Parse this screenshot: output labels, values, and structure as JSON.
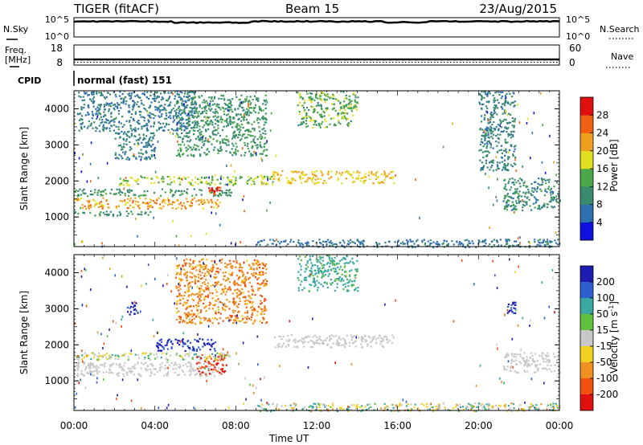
{
  "header": {
    "radar": "TIGER (fitACF)",
    "beam": "Beam 15",
    "date": "23/Aug/2015"
  },
  "noise_panel": {
    "left_label": "N.Sky",
    "right_label": "N.Search",
    "left_ticks": [
      "10^5",
      "10^0"
    ],
    "right_ticks": [
      "10^5",
      "10^0"
    ]
  },
  "freq_panel": {
    "left_label_line1": "Freq.",
    "left_label_line2": "[MHz]",
    "left_ticks": [
      "18",
      "8"
    ],
    "right_label": "Nave",
    "right_ticks": [
      "60",
      "0"
    ]
  },
  "cpid_panel": {
    "label": "CPID",
    "text": "normal (fast) 151"
  },
  "chart_data": [
    {
      "type": "heatmap",
      "name": "power",
      "ylabel": "Slant Range [km]",
      "xlabel": "Time UT",
      "xlim": [
        0,
        24
      ],
      "ylim": [
        180,
        4500
      ],
      "x_tick_labels": [
        "00:00",
        "04:00",
        "08:00",
        "12:00",
        "16:00",
        "20:00",
        "00:00"
      ],
      "y_ticks": [
        1000,
        2000,
        3000,
        4000
      ],
      "colorbar_label": "Power [dB]",
      "colorbar_ticks": [
        "4",
        "8",
        "12",
        "16",
        "20",
        "24",
        "28"
      ],
      "colorbar_colors": [
        "#1010e0",
        "#2f6fb0",
        "#3a8a70",
        "#4aa848",
        "#e0e020",
        "#f0a020",
        "#f06010",
        "#e01010"
      ],
      "regions": [
        {
          "t": [
            0.0,
            7.2
          ],
          "r": [
            1250,
            1550
          ],
          "level": [
            18,
            26
          ]
        },
        {
          "t": [
            0.0,
            3.8
          ],
          "r": [
            1050,
            1180
          ],
          "level": [
            8,
            14
          ]
        },
        {
          "t": [
            0.0,
            7.8
          ],
          "r": [
            1600,
            1800
          ],
          "level": [
            8,
            14
          ]
        },
        {
          "t": [
            6.6,
            7.2
          ],
          "r": [
            1650,
            1850
          ],
          "level": [
            26,
            30
          ]
        },
        {
          "t": [
            2.2,
            9.8
          ],
          "r": [
            1900,
            2150
          ],
          "level": [
            12,
            20
          ]
        },
        {
          "t": [
            9.8,
            15.8
          ],
          "r": [
            1950,
            2300
          ],
          "level": [
            16,
            24
          ]
        },
        {
          "t": [
            2.0,
            4.0
          ],
          "r": [
            2600,
            3400
          ],
          "level": [
            6,
            12
          ]
        },
        {
          "t": [
            5.0,
            9.5
          ],
          "r": [
            2700,
            4400
          ],
          "level": [
            8,
            14
          ]
        },
        {
          "t": [
            0.2,
            6.0
          ],
          "r": [
            3400,
            4500
          ],
          "level": [
            6,
            10
          ]
        },
        {
          "t": [
            11.0,
            14.0
          ],
          "r": [
            3500,
            4500
          ],
          "level": [
            10,
            18
          ]
        },
        {
          "t": [
            9.0,
            24.0
          ],
          "r": [
            180,
            400
          ],
          "level": [
            4,
            10
          ]
        },
        {
          "t": [
            21.2,
            24.0
          ],
          "r": [
            1200,
            2100
          ],
          "level": [
            6,
            14
          ]
        },
        {
          "t": [
            20.0,
            21.8
          ],
          "r": [
            2300,
            4500
          ],
          "level": [
            6,
            12
          ]
        }
      ]
    },
    {
      "type": "heatmap",
      "name": "velocity",
      "ylabel": "Slant Range [km]",
      "xlabel": "Time UT",
      "xlim": [
        0,
        24
      ],
      "ylim": [
        180,
        4500
      ],
      "x_tick_labels": [
        "00:00",
        "04:00",
        "08:00",
        "12:00",
        "16:00",
        "20:00",
        "00:00"
      ],
      "y_ticks": [
        1000,
        2000,
        3000,
        4000
      ],
      "colorbar_label": "Velocity [m s",
      "colorbar_label_sup": "-1",
      "colorbar_label_end": "]",
      "colorbar_ticks": [
        "200",
        "100",
        "50",
        "15",
        "-15",
        "-50",
        "-100",
        "-200"
      ],
      "colorbar_colors": [
        "#1c1cb0",
        "#2e5fd0",
        "#3aa8a0",
        "#60c040",
        "#c8c8c8",
        "#f0d020",
        "#f09020",
        "#f05010",
        "#e01010"
      ],
      "regions": [
        {
          "t": [
            0.0,
            7.2
          ],
          "r": [
            1150,
            1550
          ],
          "level": [
            -10,
            10
          ]
        },
        {
          "t": [
            6.0,
            7.5
          ],
          "r": [
            1200,
            1750
          ],
          "level": [
            -250,
            -120
          ]
        },
        {
          "t": [
            4.0,
            7.0
          ],
          "r": [
            1850,
            2200
          ],
          "level": [
            80,
            260
          ]
        },
        {
          "t": [
            2.6,
            3.2
          ],
          "r": [
            2850,
            3200
          ],
          "level": [
            120,
            220
          ]
        },
        {
          "t": [
            9.8,
            15.8
          ],
          "r": [
            1950,
            2300
          ],
          "level": [
            -10,
            10
          ]
        },
        {
          "t": [
            21.2,
            24.0
          ],
          "r": [
            1250,
            1800
          ],
          "level": [
            -10,
            10
          ]
        },
        {
          "t": [
            5.0,
            9.5
          ],
          "r": [
            2600,
            4400
          ],
          "level": [
            -120,
            -40
          ]
        },
        {
          "t": [
            11.0,
            14.0
          ],
          "r": [
            3500,
            4500
          ],
          "level": [
            20,
            60
          ]
        },
        {
          "t": [
            9.0,
            24.0
          ],
          "r": [
            180,
            400
          ],
          "level": [
            -60,
            60
          ]
        },
        {
          "t": [
            0.0,
            7.8
          ],
          "r": [
            1600,
            1800
          ],
          "level": [
            -40,
            40
          ]
        },
        {
          "t": [
            21.4,
            21.8
          ],
          "r": [
            2900,
            3200
          ],
          "level": [
            120,
            220
          ]
        }
      ]
    }
  ]
}
